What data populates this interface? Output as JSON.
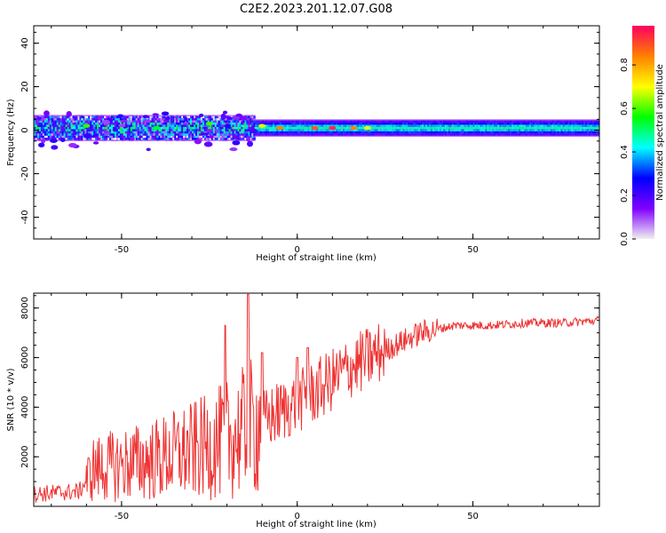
{
  "title": "C2E2.2023.201.12.07.G08",
  "chart_data": [
    {
      "type": "heatmap",
      "name": "spectrogram",
      "xlabel": "Height of straight line (km)",
      "ylabel": "Frequency (Hz)",
      "xlim": [
        -75,
        86
      ],
      "ylim": [
        -50,
        48
      ],
      "xticks": [
        -50,
        0,
        50
      ],
      "yticks": [
        -40,
        -20,
        0,
        20,
        40
      ],
      "colorbar": {
        "label": "Normalized spectral amplitude",
        "range": [
          0,
          0.98
        ],
        "ticks": [
          0.0,
          0.2,
          0.4,
          0.6,
          0.8
        ],
        "colors": [
          "#f0f0f0",
          "#8000ff",
          "#0000ff",
          "#00ffff",
          "#00ff00",
          "#ffff00",
          "#ff8000",
          "#ff0060"
        ]
      },
      "band": {
        "center_hz": 1,
        "half_width_hz_low_height": 5,
        "half_width_hz_high_height": 3,
        "noisy_region_x": [
          -75,
          -12
        ],
        "stable_region_x": [
          -12,
          86
        ]
      },
      "hot_spots": [
        {
          "x": -60,
          "y": 2,
          "amp": 0.6
        },
        {
          "x": -40,
          "y": 1,
          "amp": 0.55
        },
        {
          "x": -25,
          "y": 3,
          "amp": 0.6
        },
        {
          "x": -10,
          "y": 2,
          "amp": 0.7
        },
        {
          "x": -5,
          "y": 1,
          "amp": 0.85
        },
        {
          "x": 5,
          "y": 1,
          "amp": 0.9
        },
        {
          "x": 10,
          "y": 1,
          "amp": 0.95
        },
        {
          "x": 16,
          "y": 1,
          "amp": 0.85
        },
        {
          "x": 20,
          "y": 1,
          "amp": 0.7
        }
      ]
    },
    {
      "type": "line",
      "name": "snr",
      "xlabel": "Height of straight line (km)",
      "ylabel": "SNR (10 * v/v)",
      "xlim": [
        -75,
        86
      ],
      "ylim": [
        0,
        8600
      ],
      "xticks": [
        -50,
        0,
        50
      ],
      "yticks": [
        2000,
        4000,
        6000,
        8000
      ],
      "line_color": "#ee3333",
      "trend": [
        {
          "x": -75,
          "y": 500
        },
        {
          "x": -62,
          "y": 600
        },
        {
          "x": -58,
          "y": 1500
        },
        {
          "x": -40,
          "y": 1900
        },
        {
          "x": -25,
          "y": 2400
        },
        {
          "x": -15,
          "y": 3000
        },
        {
          "x": -5,
          "y": 3800
        },
        {
          "x": 5,
          "y": 4600
        },
        {
          "x": 15,
          "y": 5600
        },
        {
          "x": 25,
          "y": 6300
        },
        {
          "x": 35,
          "y": 7000
        },
        {
          "x": 45,
          "y": 7300
        },
        {
          "x": 55,
          "y": 7300
        },
        {
          "x": 65,
          "y": 7400
        },
        {
          "x": 75,
          "y": 7400
        },
        {
          "x": 86,
          "y": 7500
        }
      ],
      "spikes": [
        {
          "x": -20.5,
          "y": 7300
        },
        {
          "x": -14,
          "y": 8550
        },
        {
          "x": -10,
          "y": 6200
        },
        {
          "x": 0,
          "y": 6000
        },
        {
          "x": 3,
          "y": 6400
        }
      ]
    }
  ]
}
